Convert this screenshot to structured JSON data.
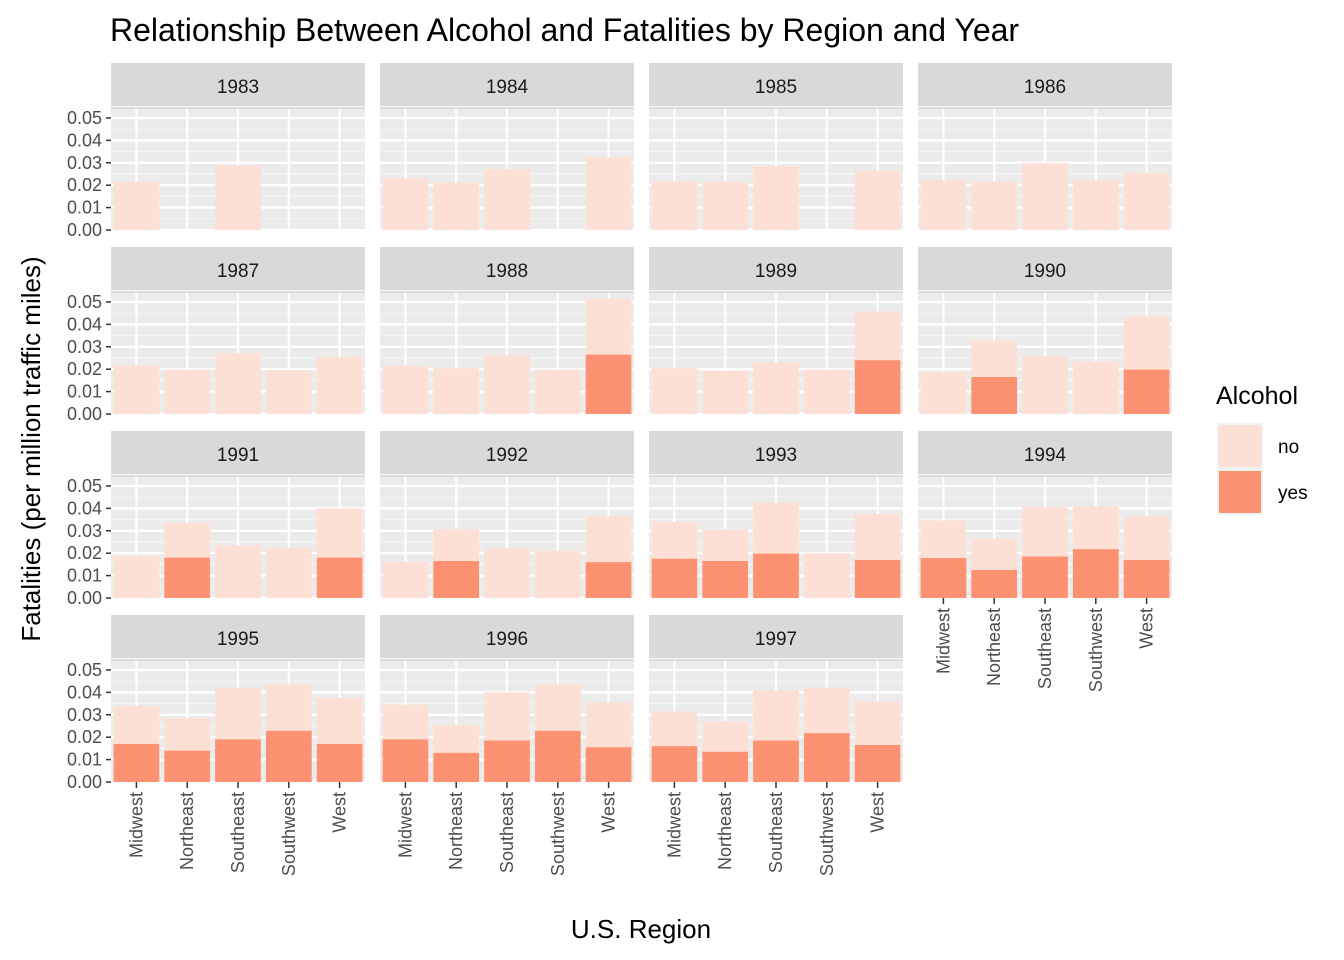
{
  "chart_data": {
    "type": "bar",
    "stacked": true,
    "faceted_by": "Year",
    "title": "Relationship Between Alcohol and Fatalities by Region and Year",
    "xlabel": "U.S. Region",
    "ylabel": "Fatalities (per million traffic miles)",
    "categories": [
      "Midwest",
      "Northeast",
      "Southeast",
      "Southwest",
      "West"
    ],
    "y_ticks": [
      "0.00",
      "0.01",
      "0.02",
      "0.03",
      "0.04",
      "0.05"
    ],
    "ylim": [
      0,
      0.054
    ],
    "grid": true,
    "legend": {
      "title": "Alcohol",
      "position": "right",
      "entries": [
        {
          "label": "no",
          "color": "#fde0d5"
        },
        {
          "label": "yes",
          "color": "#fc9272"
        }
      ]
    },
    "panels": [
      {
        "year": "1983",
        "no": [
          0.0215,
          null,
          0.0288,
          null,
          null
        ],
        "yes": [
          null,
          null,
          null,
          null,
          null
        ]
      },
      {
        "year": "1984",
        "no": [
          0.0232,
          0.0212,
          0.0272,
          null,
          0.0325
        ],
        "yes": [
          null,
          null,
          null,
          null,
          null
        ]
      },
      {
        "year": "1985",
        "no": [
          0.0218,
          0.0215,
          0.0285,
          null,
          0.0265
        ],
        "yes": [
          null,
          null,
          null,
          null,
          null
        ]
      },
      {
        "year": "1986",
        "no": [
          0.0222,
          0.0215,
          0.0298,
          0.0225,
          0.0255
        ],
        "yes": [
          null,
          null,
          null,
          null,
          null
        ]
      },
      {
        "year": "1987",
        "no": [
          0.0218,
          0.0198,
          0.0272,
          0.0195,
          0.0255
        ],
        "yes": [
          null,
          null,
          null,
          null,
          null
        ]
      },
      {
        "year": "1988",
        "no": [
          0.0215,
          0.0205,
          0.0262,
          0.0198,
          0.0515
        ],
        "yes": [
          null,
          null,
          null,
          null,
          0.0265
        ]
      },
      {
        "year": "1989",
        "no": [
          0.0205,
          0.0192,
          0.023,
          0.0198,
          0.0458
        ],
        "yes": [
          null,
          null,
          null,
          null,
          0.024
        ]
      },
      {
        "year": "1990",
        "no": [
          0.0188,
          0.0328,
          0.0258,
          0.0235,
          0.0435
        ],
        "yes": [
          null,
          0.0165,
          null,
          null,
          0.0198
        ]
      },
      {
        "year": "1991",
        "no": [
          0.0188,
          0.0335,
          0.0235,
          0.0222,
          0.04
        ],
        "yes": [
          null,
          0.018,
          null,
          null,
          0.018
        ]
      },
      {
        "year": "1992",
        "no": [
          0.0162,
          0.0308,
          0.0222,
          0.021,
          0.0365
        ],
        "yes": [
          null,
          0.0165,
          null,
          null,
          0.016
        ]
      },
      {
        "year": "1993",
        "no": [
          0.034,
          0.0305,
          0.0425,
          0.02,
          0.0375
        ],
        "yes": [
          0.0175,
          0.0165,
          0.0198,
          null,
          0.017
        ]
      },
      {
        "year": "1994",
        "no": [
          0.0345,
          0.0265,
          0.0405,
          0.041,
          0.0365
        ],
        "yes": [
          0.0178,
          0.0125,
          0.0185,
          0.0218,
          0.017
        ]
      },
      {
        "year": "1995",
        "no": [
          0.034,
          0.0285,
          0.042,
          0.0435,
          0.0375
        ],
        "yes": [
          0.017,
          0.014,
          0.019,
          0.0228,
          0.017
        ]
      },
      {
        "year": "1996",
        "no": [
          0.0345,
          0.0255,
          0.04,
          0.0435,
          0.0355
        ],
        "yes": [
          0.019,
          0.013,
          0.0185,
          0.0228,
          0.0155
        ]
      },
      {
        "year": "1997",
        "no": [
          0.0315,
          0.027,
          0.041,
          0.042,
          0.036
        ],
        "yes": [
          0.016,
          0.0135,
          0.0185,
          0.0218,
          0.0165
        ]
      }
    ]
  }
}
